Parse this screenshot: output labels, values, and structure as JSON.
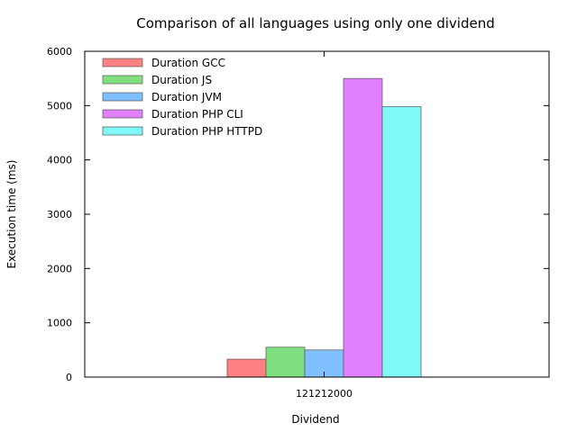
{
  "chart_data": {
    "type": "bar",
    "title": "Comparison of all languages using only one dividend",
    "xlabel": "Dividend",
    "ylabel": "Execution time (ms)",
    "categories": [
      "121212000"
    ],
    "ylim": [
      0,
      6000
    ],
    "yticks": [
      0,
      1000,
      2000,
      3000,
      4000,
      5000,
      6000
    ],
    "grid": false,
    "legend_position": "top-left",
    "series": [
      {
        "name": "Duration GCC",
        "color": "#ff8080",
        "values": [
          330
        ]
      },
      {
        "name": "Duration JS",
        "color": "#80e080",
        "values": [
          550
        ]
      },
      {
        "name": "Duration JVM",
        "color": "#80c0ff",
        "values": [
          500
        ]
      },
      {
        "name": "Duration PHP CLI",
        "color": "#e080ff",
        "values": [
          5500
        ]
      },
      {
        "name": "Duration PHP HTTPD",
        "color": "#80f8f8",
        "values": [
          4980
        ]
      }
    ]
  }
}
